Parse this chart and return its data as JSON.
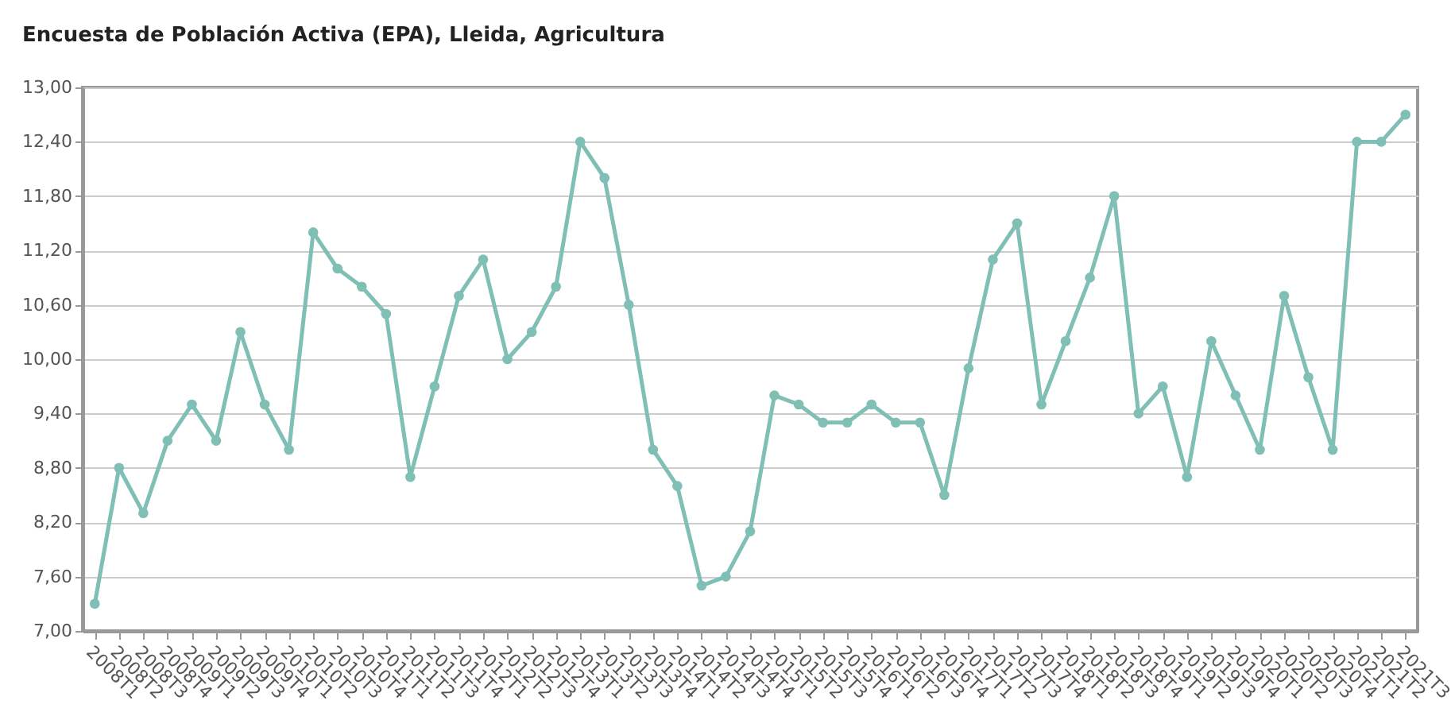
{
  "chart_data": {
    "type": "line",
    "title": "Encuesta de Población Activa (EPA), Lleida, Agricultura",
    "categories": [
      "2008T1",
      "2008T2",
      "2008T3",
      "2008T4",
      "2009T1",
      "2009T2",
      "2009T3",
      "2009T4",
      "2010T1",
      "2010T2",
      "2010T3",
      "2010T4",
      "2011T1",
      "2011T2",
      "2011T3",
      "2011T4",
      "2012T1",
      "2012T2",
      "2012T3",
      "2012T4",
      "2013T1",
      "2013T2",
      "2013T3",
      "2013T4",
      "2014T1",
      "2014T2",
      "2014T3",
      "2014T4",
      "2015T1",
      "2015T2",
      "2015T3",
      "2015T4",
      "2016T1",
      "2016T2",
      "2016T3",
      "2016T4",
      "2017T1",
      "2017T2",
      "2017T3",
      "2017T4",
      "2018T1",
      "2018T2",
      "2018T3",
      "2018T4",
      "2019T1",
      "2019T2",
      "2019T3",
      "2019T4",
      "2020T1",
      "2020T2",
      "2020T3",
      "2020T4",
      "2021T1",
      "2021T2",
      "2021T3"
    ],
    "series": [
      {
        "color": "#7fbfb5",
        "values": [
          7.3,
          8.8,
          8.3,
          9.1,
          9.5,
          9.1,
          10.3,
          9.5,
          9.0,
          11.4,
          11.0,
          10.8,
          10.5,
          8.7,
          9.7,
          10.7,
          11.1,
          10.0,
          10.3,
          10.8,
          12.4,
          12.0,
          10.6,
          9.0,
          8.6,
          7.5,
          7.6,
          8.1,
          9.6,
          9.5,
          9.3,
          9.3,
          9.5,
          9.3,
          9.3,
          8.5,
          9.9,
          11.1,
          11.5,
          9.5,
          10.2,
          10.9,
          11.8,
          9.4,
          9.7,
          8.7,
          10.2,
          9.6,
          9.0,
          10.7,
          9.8,
          9.0,
          12.4,
          12.4,
          12.7
        ]
      }
    ],
    "ylim": [
      7,
      13
    ],
    "yticks": [
      {
        "value": 7,
        "label": "7,00"
      },
      {
        "value": 7.6,
        "label": "7,60"
      },
      {
        "value": 8.2,
        "label": "8,20"
      },
      {
        "value": 8.8,
        "label": "8,80"
      },
      {
        "value": 9.4,
        "label": "9,40"
      },
      {
        "value": 10,
        "label": "10,00"
      },
      {
        "value": 10.6,
        "label": "10,60"
      },
      {
        "value": 11.2,
        "label": "11,20"
      },
      {
        "value": 11.8,
        "label": "11,80"
      },
      {
        "value": 12.4,
        "label": "12,40"
      },
      {
        "value": 13,
        "label": "13,00"
      }
    ],
    "grid": "y",
    "marker": "circle",
    "line_style": "solid"
  }
}
